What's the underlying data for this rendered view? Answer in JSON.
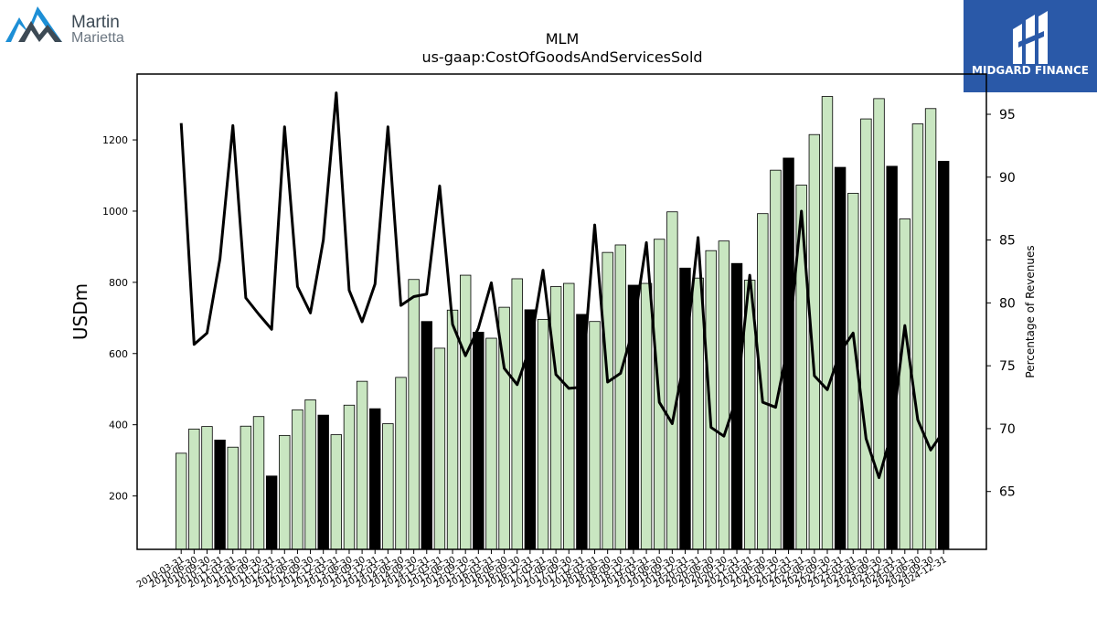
{
  "brand_left": {
    "line1": "Martin",
    "line2": "Marietta",
    "color_dark": "#3d4a55",
    "color_accent": "#1d8fd6"
  },
  "brand_right": {
    "text": "MIDGARD FINANCE",
    "bg": "#2a59a8"
  },
  "colors": {
    "bar_normal": "#c9e6c1",
    "bar_q4": "#000000",
    "line": "#000000"
  },
  "chart_data": {
    "type": "bar",
    "title": "MLM",
    "subtitle": "us-gaap:CostOfGoodsAndServicesSold",
    "ylabel": "USDm",
    "y2label": "Percentage of Revenues",
    "ylim": [
      50,
      1385
    ],
    "y2lim": [
      60.4,
      98.2
    ],
    "yticks": [
      200,
      400,
      600,
      800,
      1000,
      1200
    ],
    "y2ticks": [
      65,
      70,
      75,
      80,
      85,
      90,
      95
    ],
    "xtick_labels": [
      "2010-03-31",
      "2010-06-30",
      "2010-09-30",
      "2010-12-31",
      "2011-03-31",
      "2011-06-30",
      "2011-09-30",
      "2011-12-31",
      "2012-03-31",
      "2012-06-30",
      "2012-09-30",
      "2012-12-31",
      "2013-03-31",
      "2013-06-30",
      "2013-09-30",
      "2013-12-31",
      "2014-03-31",
      "2014-06-30",
      "2014-09-30",
      "2014-12-31",
      "2015-03-31",
      "2015-06-30",
      "2015-09-30",
      "2015-12-31",
      "2016-03-31",
      "2016-06-30",
      "2016-09-30",
      "2016-12-31",
      "2017-03-31",
      "2017-06-30",
      "2017-09-30",
      "2017-12-31",
      "2018-03-31",
      "2018-06-30",
      "2018-09-30",
      "2018-12-31",
      "2019-03-31",
      "2019-06-30",
      "2019-09-30",
      "2019-12-31",
      "2020-03-31",
      "2020-06-30",
      "2020-09-30",
      "2020-12-31",
      "2021-03-31",
      "2021-06-30",
      "2021-09-30",
      "2021-12-31",
      "2022-03-31",
      "2022-06-30",
      "2022-09-30",
      "2022-12-31",
      "2023-03-31",
      "2023-06-30",
      "2023-09-30",
      "2023-12-31",
      "2024-03-31",
      "2024-06-30",
      "2024-09-30",
      "2024-12-31"
    ],
    "series": [
      {
        "values": [
          320,
          388,
          395,
          357,
          337,
          396,
          423,
          256,
          370,
          442,
          470,
          427,
          372,
          455,
          522,
          445,
          403,
          533,
          808,
          690,
          615,
          722,
          820,
          660,
          643,
          730,
          810,
          723,
          696,
          788,
          797,
          710,
          690,
          884,
          905,
          792,
          797,
          921,
          998,
          840,
          812,
          889,
          916,
          853,
          806,
          993,
          1115,
          1149,
          1073,
          1215,
          1322,
          1123,
          1050,
          1259,
          1316,
          1126,
          978,
          1245,
          1288,
          1140
        ],
        "q4_flags": [
          false,
          false,
          false,
          true,
          false,
          false,
          false,
          true,
          false,
          false,
          false,
          true,
          false,
          false,
          false,
          true,
          false,
          false,
          false,
          true,
          false,
          false,
          false,
          true,
          false,
          false,
          false,
          true,
          false,
          false,
          false,
          true,
          false,
          false,
          false,
          true,
          false,
          false,
          false,
          true,
          false,
          false,
          false,
          true,
          false,
          false,
          false,
          true,
          false,
          false,
          false,
          true,
          false,
          false,
          false,
          true,
          false,
          false,
          false,
          true
        ]
      },
      {
        "values": [
          94.3,
          76.7,
          77.6,
          83.5,
          94.1,
          80.4,
          79.1,
          77.9,
          94.0,
          81.3,
          79.2,
          85.0,
          96.7,
          81.0,
          78.5,
          81.5,
          94.0,
          79.8,
          80.5,
          80.7,
          89.3,
          78.3,
          75.8,
          78.0,
          81.6,
          74.8,
          73.5,
          76.5,
          82.6,
          74.3,
          73.2,
          73.3,
          86.2,
          73.7,
          74.4,
          78.0,
          84.8,
          72.1,
          70.4,
          75.8,
          85.2,
          70.1,
          69.4,
          72.5,
          82.2,
          72.1,
          71.7,
          76.8,
          87.3,
          74.2,
          73.1,
          76.1,
          77.6,
          69.2,
          66.1,
          69.7,
          78.2,
          70.7,
          68.3,
          69.8
        ]
      }
    ]
  }
}
